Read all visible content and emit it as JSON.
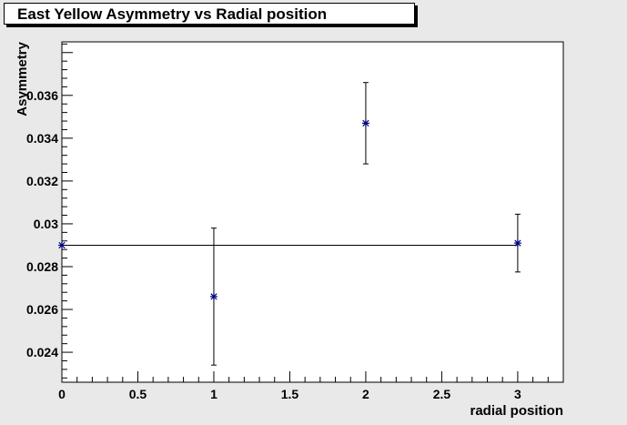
{
  "chart_data": {
    "type": "scatter",
    "title": "East Yellow Asymmetry vs Radial position",
    "xlabel": "radial position",
    "ylabel": "Asymmetry",
    "xlim": [
      0,
      3.3
    ],
    "ylim": [
      0.0226,
      0.0385
    ],
    "xticks": [
      0,
      0.5,
      1,
      1.5,
      2,
      2.5,
      3
    ],
    "xtick_labels": [
      "0",
      "0.5",
      "1",
      "1.5",
      "2",
      "2.5",
      "3"
    ],
    "yticks": [
      0.024,
      0.026,
      0.028,
      0.03,
      0.032,
      0.034,
      0.036
    ],
    "ytick_labels": [
      "0.024",
      "0.026",
      "0.028",
      "0.03",
      "0.032",
      "0.034",
      "0.036"
    ],
    "points": [
      {
        "x": 0,
        "y": 0.029,
        "err": 0
      },
      {
        "x": 1,
        "y": 0.0266,
        "err": 0.0032
      },
      {
        "x": 2,
        "y": 0.0347,
        "err": 0.0019
      },
      {
        "x": 3,
        "y": 0.0291,
        "err": 0.00135
      }
    ],
    "fit_line": {
      "y": 0.029,
      "x_from": 0,
      "x_to": 3.0
    },
    "colors": {
      "marker": "#000080",
      "frame": "#ffffff",
      "background": "#e9e9e9"
    }
  }
}
